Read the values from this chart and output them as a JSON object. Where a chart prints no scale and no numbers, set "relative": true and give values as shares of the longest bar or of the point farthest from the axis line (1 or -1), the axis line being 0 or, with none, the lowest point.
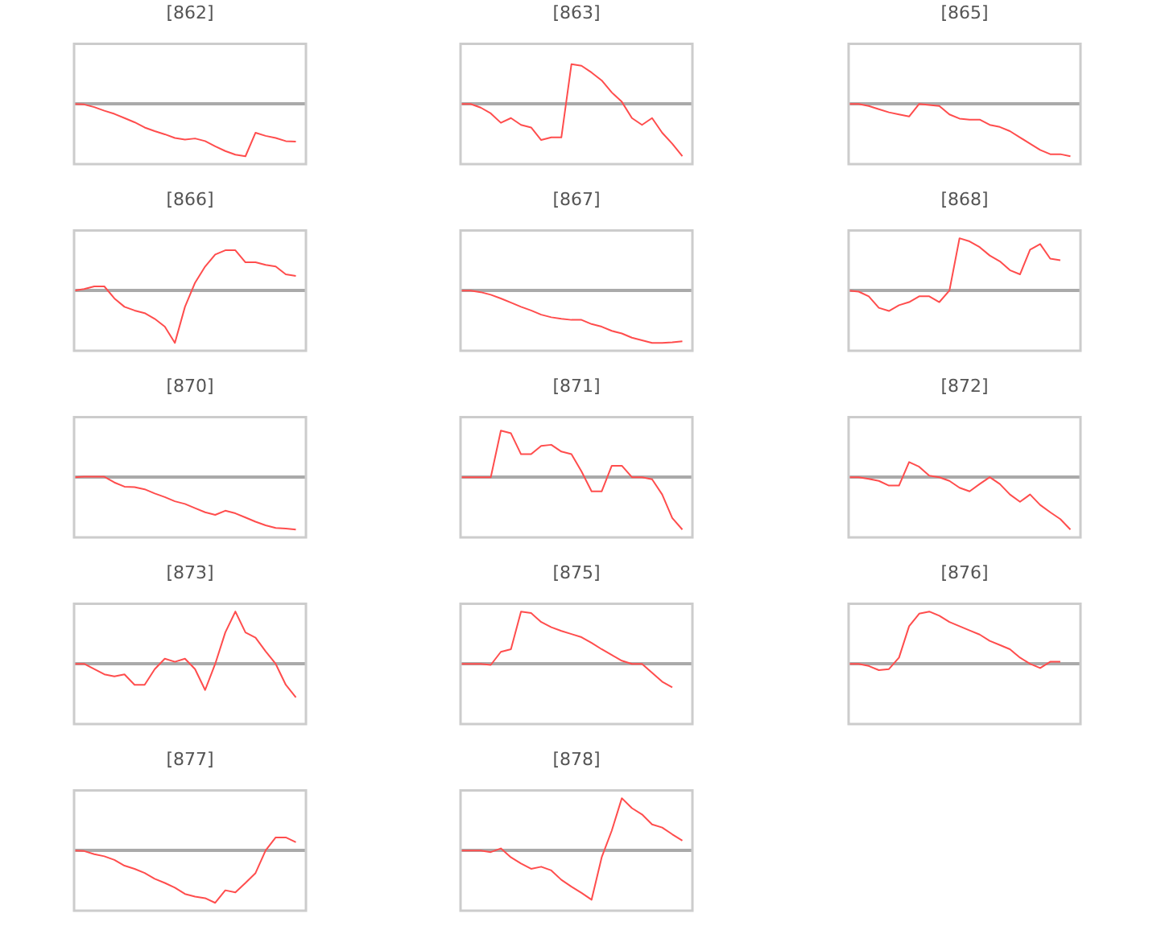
{
  "chart_data": [
    {
      "type": "line",
      "title": "[862]",
      "relative": true,
      "tick_labels": false,
      "categories": [
        null,
        null,
        null,
        null,
        null,
        null,
        null,
        null,
        null,
        null,
        null,
        null,
        null,
        null,
        null,
        null,
        null,
        null,
        null,
        null,
        null,
        null,
        null,
        null
      ],
      "series": [
        {
          "color": "#ff4d4d",
          "values": [
            0,
            -0.01,
            -0.06,
            -0.13,
            -0.19,
            -0.27,
            -0.35,
            -0.45,
            -0.52,
            -0.58,
            -0.65,
            -0.68,
            -0.66,
            -0.71,
            -0.81,
            -0.9,
            -0.97,
            -1,
            -0.55,
            -0.61,
            -0.65,
            -0.71,
            -0.72,
            null
          ]
        }
      ]
    },
    {
      "type": "line",
      "title": "[863]",
      "relative": true,
      "tick_labels": false,
      "categories": [
        null,
        null,
        null,
        null,
        null,
        null,
        null,
        null,
        null,
        null,
        null,
        null,
        null,
        null,
        null,
        null,
        null,
        null,
        null,
        null,
        null,
        null,
        null,
        null
      ],
      "series": [
        {
          "color": "#ff4d4d",
          "values": [
            0,
            0,
            -0.07,
            -0.18,
            -0.36,
            -0.27,
            -0.4,
            -0.45,
            -0.69,
            -0.64,
            -0.64,
            0.76,
            0.73,
            0.6,
            0.45,
            0.22,
            0.04,
            -0.27,
            -0.4,
            -0.27,
            -0.55,
            -0.76,
            -1,
            null
          ]
        }
      ]
    },
    {
      "type": "line",
      "title": "[865]",
      "relative": true,
      "tick_labels": false,
      "categories": [
        null,
        null,
        null,
        null,
        null,
        null,
        null,
        null,
        null,
        null,
        null,
        null,
        null,
        null,
        null,
        null,
        null,
        null,
        null,
        null,
        null,
        null,
        null,
        null
      ],
      "series": [
        {
          "color": "#ff4d4d",
          "values": [
            0,
            0,
            -0.04,
            -0.1,
            -0.16,
            -0.2,
            -0.24,
            0,
            -0.02,
            -0.04,
            -0.2,
            -0.28,
            -0.3,
            -0.3,
            -0.4,
            -0.44,
            -0.52,
            -0.64,
            -0.76,
            -0.88,
            -0.96,
            -0.96,
            -1,
            null
          ]
        }
      ]
    },
    {
      "type": "line",
      "title": "[866]",
      "relative": true,
      "tick_labels": false,
      "categories": [
        null,
        null,
        null,
        null,
        null,
        null,
        null,
        null,
        null,
        null,
        null,
        null,
        null,
        null,
        null,
        null,
        null,
        null,
        null,
        null,
        null,
        null,
        null,
        null
      ],
      "series": [
        {
          "color": "#ff4d4d",
          "values": [
            0,
            0.03,
            0.08,
            0.08,
            -0.15,
            -0.31,
            -0.38,
            -0.43,
            -0.54,
            -0.69,
            -1,
            -0.31,
            0.15,
            0.46,
            0.69,
            0.77,
            0.77,
            0.54,
            0.54,
            0.49,
            0.46,
            0.31,
            0.28,
            null
          ]
        }
      ]
    },
    {
      "type": "line",
      "title": "[867]",
      "relative": true,
      "tick_labels": false,
      "categories": [
        null,
        null,
        null,
        null,
        null,
        null,
        null,
        null,
        null,
        null,
        null,
        null,
        null,
        null,
        null,
        null,
        null,
        null,
        null,
        null,
        null,
        null,
        null,
        null
      ],
      "series": [
        {
          "color": "#ff4d4d",
          "values": [
            0,
            0,
            -0.03,
            -0.08,
            -0.15,
            -0.23,
            -0.31,
            -0.38,
            -0.46,
            -0.51,
            -0.54,
            -0.56,
            -0.56,
            -0.64,
            -0.69,
            -0.77,
            -0.82,
            -0.9,
            -0.95,
            -1,
            -1,
            -0.99,
            -0.97,
            null
          ]
        }
      ]
    },
    {
      "type": "line",
      "title": "[868]",
      "relative": true,
      "tick_labels": false,
      "categories": [
        null,
        null,
        null,
        null,
        null,
        null,
        null,
        null,
        null,
        null,
        null,
        null,
        null,
        null,
        null,
        null,
        null,
        null,
        null,
        null,
        null,
        null,
        null,
        null
      ],
      "series": [
        {
          "color": "#ff4d4d",
          "values": [
            0,
            -0.02,
            -0.11,
            -0.33,
            -0.39,
            -0.28,
            -0.22,
            -0.11,
            -0.11,
            -0.22,
            0,
            1,
            0.94,
            0.83,
            0.67,
            0.56,
            0.39,
            0.31,
            0.78,
            0.89,
            0.61,
            0.58,
            null,
            null
          ]
        }
      ]
    },
    {
      "type": "line",
      "title": "[870]",
      "relative": true,
      "tick_labels": false,
      "categories": [
        null,
        null,
        null,
        null,
        null,
        null,
        null,
        null,
        null,
        null,
        null,
        null,
        null,
        null,
        null,
        null,
        null,
        null,
        null,
        null,
        null,
        null,
        null,
        null
      ],
      "series": [
        {
          "color": "#ff4d4d",
          "values": [
            0,
            0.01,
            0.01,
            0.01,
            -0.1,
            -0.18,
            -0.19,
            -0.23,
            -0.31,
            -0.38,
            -0.46,
            -0.51,
            -0.59,
            -0.67,
            -0.72,
            -0.64,
            -0.69,
            -0.77,
            -0.85,
            -0.92,
            -0.97,
            -0.98,
            -1,
            null
          ]
        }
      ]
    },
    {
      "type": "line",
      "title": "[871]",
      "relative": true,
      "tick_labels": false,
      "categories": [
        null,
        null,
        null,
        null,
        null,
        null,
        null,
        null,
        null,
        null,
        null,
        null,
        null,
        null,
        null,
        null,
        null,
        null,
        null,
        null,
        null,
        null,
        null,
        null
      ],
      "series": [
        {
          "color": "#ff4d4d",
          "values": [
            0,
            0,
            0,
            0,
            0.89,
            0.84,
            0.44,
            0.44,
            0.6,
            0.62,
            0.49,
            0.44,
            0.11,
            -0.27,
            -0.27,
            0.22,
            0.22,
            0,
            0,
            -0.04,
            -0.33,
            -0.78,
            -1,
            null
          ]
        }
      ]
    },
    {
      "type": "line",
      "title": "[872]",
      "relative": true,
      "tick_labels": false,
      "categories": [
        null,
        null,
        null,
        null,
        null,
        null,
        null,
        null,
        null,
        null,
        null,
        null,
        null,
        null,
        null,
        null,
        null,
        null,
        null,
        null,
        null,
        null,
        null,
        null
      ],
      "series": [
        {
          "color": "#ff4d4d",
          "values": [
            0,
            0,
            -0.03,
            -0.07,
            -0.16,
            -0.16,
            0.29,
            0.2,
            0.03,
            0,
            -0.07,
            -0.2,
            -0.27,
            -0.13,
            0,
            -0.13,
            -0.33,
            -0.47,
            -0.33,
            -0.53,
            -0.67,
            -0.8,
            -1,
            null
          ]
        }
      ]
    },
    {
      "type": "line",
      "title": "[873]",
      "relative": true,
      "tick_labels": false,
      "categories": [
        null,
        null,
        null,
        null,
        null,
        null,
        null,
        null,
        null,
        null,
        null,
        null,
        null,
        null,
        null,
        null,
        null,
        null,
        null,
        null,
        null,
        null,
        null,
        null
      ],
      "series": [
        {
          "color": "#ff4d4d",
          "values": [
            0,
            0,
            -0.1,
            -0.2,
            -0.24,
            -0.2,
            -0.4,
            -0.4,
            -0.1,
            0.1,
            0.04,
            0.1,
            -0.1,
            -0.5,
            0,
            0.6,
            1,
            0.6,
            0.5,
            0.24,
            0,
            -0.4,
            -0.64,
            null
          ]
        }
      ]
    },
    {
      "type": "line",
      "title": "[875]",
      "relative": true,
      "tick_labels": false,
      "categories": [
        null,
        null,
        null,
        null,
        null,
        null,
        null,
        null,
        null,
        null,
        null,
        null,
        null,
        null,
        null,
        null,
        null,
        null,
        null,
        null,
        null,
        null,
        null,
        null
      ],
      "series": [
        {
          "color": "#ff4d4d",
          "values": [
            0,
            0,
            0,
            -0.02,
            0.23,
            0.28,
            1,
            0.97,
            0.8,
            0.7,
            0.63,
            0.57,
            0.51,
            0.4,
            0.28,
            0.17,
            0.06,
            0,
            0,
            -0.17,
            -0.34,
            -0.45,
            null,
            null
          ]
        }
      ]
    },
    {
      "type": "line",
      "title": "[876]",
      "relative": true,
      "tick_labels": false,
      "categories": [
        null,
        null,
        null,
        null,
        null,
        null,
        null,
        null,
        null,
        null,
        null,
        null,
        null,
        null,
        null,
        null,
        null,
        null,
        null,
        null,
        null,
        null,
        null,
        null
      ],
      "series": [
        {
          "color": "#ff4d4d",
          "values": [
            0,
            0,
            -0.04,
            -0.12,
            -0.1,
            0.12,
            0.72,
            0.96,
            1,
            0.92,
            0.8,
            0.72,
            0.64,
            0.56,
            0.44,
            0.36,
            0.28,
            0.12,
            0,
            -0.08,
            0.04,
            0.04,
            null,
            null
          ]
        }
      ]
    },
    {
      "type": "line",
      "title": "[877]",
      "relative": true,
      "tick_labels": false,
      "categories": [
        null,
        null,
        null,
        null,
        null,
        null,
        null,
        null,
        null,
        null,
        null,
        null,
        null,
        null,
        null,
        null,
        null,
        null,
        null,
        null,
        null,
        null,
        null,
        null
      ],
      "series": [
        {
          "color": "#ff4d4d",
          "values": [
            0,
            -0.01,
            -0.07,
            -0.11,
            -0.18,
            -0.29,
            -0.35,
            -0.43,
            -0.54,
            -0.62,
            -0.71,
            -0.83,
            -0.88,
            -0.91,
            -1,
            -0.76,
            -0.8,
            -0.62,
            -0.43,
            0,
            0.25,
            0.25,
            0.16,
            null
          ]
        }
      ]
    },
    {
      "type": "line",
      "title": "[878]",
      "relative": true,
      "tick_labels": false,
      "categories": [
        null,
        null,
        null,
        null,
        null,
        null,
        null,
        null,
        null,
        null,
        null,
        null,
        null,
        null,
        null,
        null,
        null,
        null,
        null,
        null,
        null,
        null,
        null,
        null
      ],
      "series": [
        {
          "color": "#ff4d4d",
          "values": [
            0,
            0,
            0,
            -0.03,
            0.04,
            -0.13,
            -0.25,
            -0.35,
            -0.31,
            -0.38,
            -0.56,
            -0.69,
            -0.81,
            -0.94,
            -0.13,
            0.38,
            1,
            0.81,
            0.69,
            0.5,
            0.44,
            0.31,
            0.19,
            null
          ]
        }
      ]
    }
  ]
}
